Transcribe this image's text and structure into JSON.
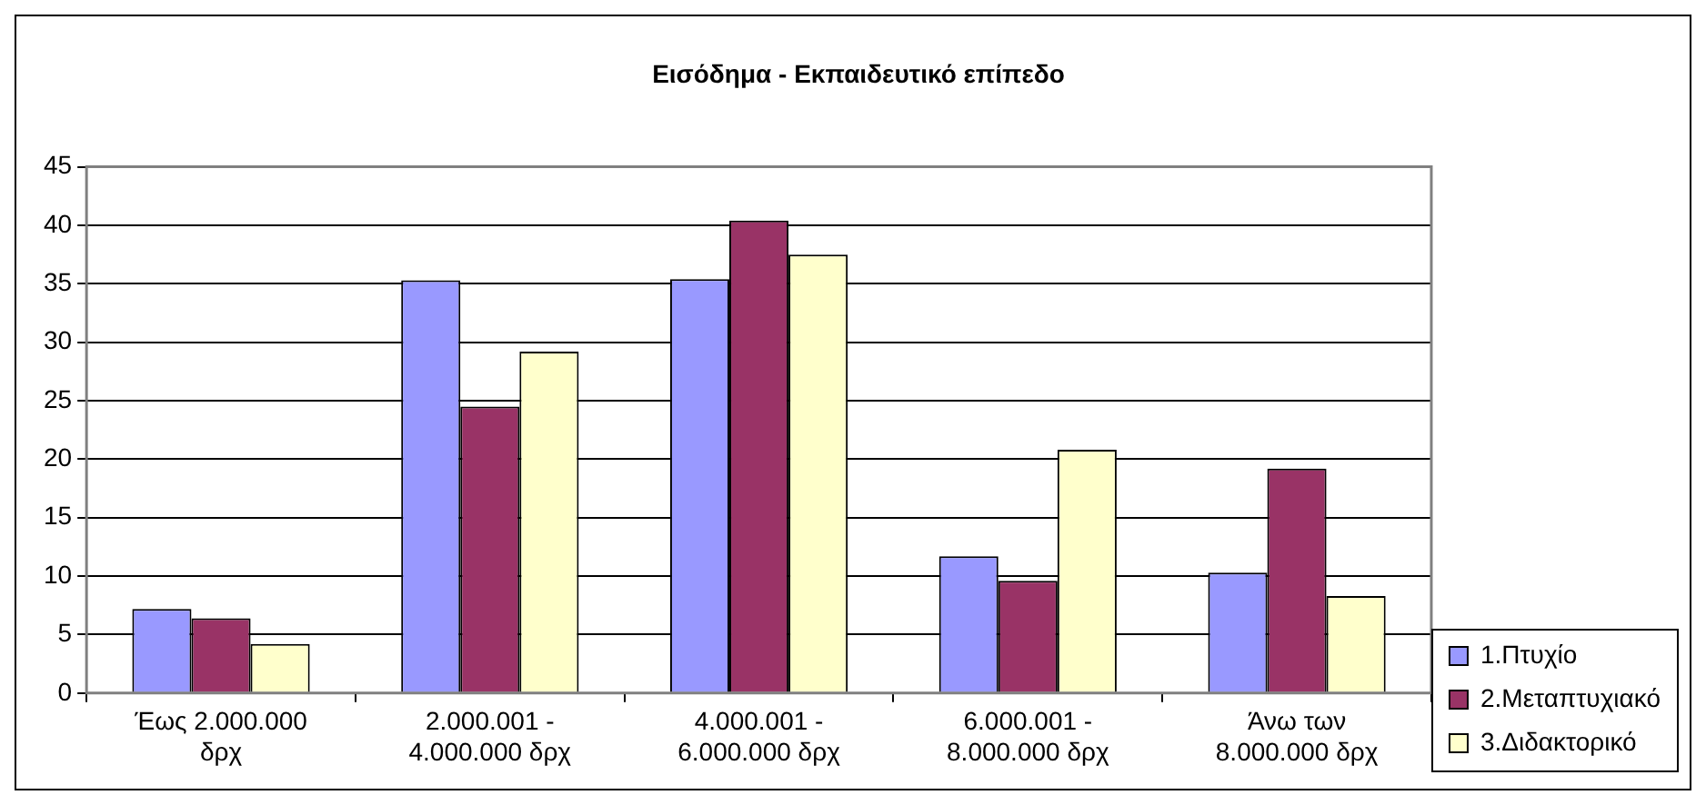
{
  "chart_data": {
    "type": "bar",
    "title": "Εισόδημα - Εκπαιδευτικό επίπεδο",
    "categories": [
      "Έως 2.000.000 δρχ",
      "2.000.001 - 4.000.000 δρχ",
      "4.000.001 - 6.000.000 δρχ",
      "6.000.001 - 8.000.000 δρχ",
      "Άνω των 8.000.000 δρχ"
    ],
    "series": [
      {
        "name": "1.Πτυχίο",
        "color": "#9999ff",
        "values": [
          7.2,
          35.3,
          35.4,
          11.7,
          10.3
        ]
      },
      {
        "name": "2.Μεταπτυχιακό",
        "color": "#993366",
        "values": [
          6.4,
          24.5,
          40.4,
          9.6,
          19.2
        ]
      },
      {
        "name": "3.Διδακτορικό",
        "color": "#ffffcc",
        "values": [
          4.2,
          29.2,
          37.5,
          20.8,
          8.3
        ]
      }
    ],
    "ylim": [
      0,
      45
    ],
    "yticks": [
      0,
      5,
      10,
      15,
      20,
      25,
      30,
      35,
      40,
      45
    ],
    "grid": "y",
    "legend": "bottom right"
  }
}
